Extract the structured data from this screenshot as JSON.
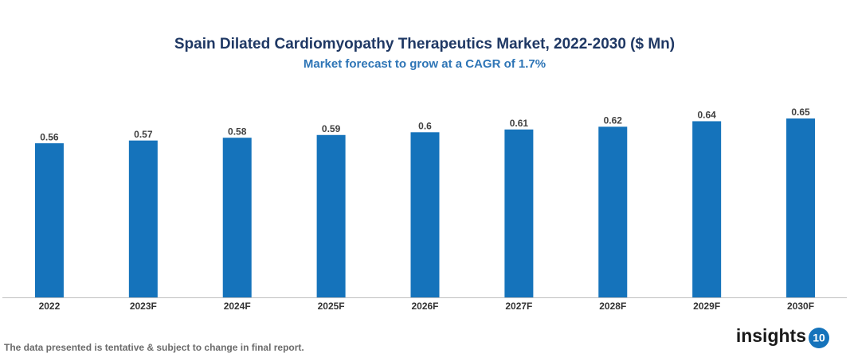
{
  "chart_data": {
    "type": "bar",
    "title": "Spain Dilated Cardiomyopathy Therapeutics Market, 2022-2030 ($ Mn)",
    "subtitle": "Market forecast to grow at a CAGR of 1.7%",
    "categories": [
      "2022",
      "2023F",
      "2024F",
      "2025F",
      "2026F",
      "2027F",
      "2028F",
      "2029F",
      "2030F"
    ],
    "values": [
      0.56,
      0.57,
      0.58,
      0.59,
      0.6,
      0.61,
      0.62,
      0.64,
      0.65
    ],
    "color": "#1573bb"
  },
  "footer_note": "The data presented is tentative & subject to change in final report.",
  "logo": {
    "text": "insights",
    "badge": "10"
  }
}
